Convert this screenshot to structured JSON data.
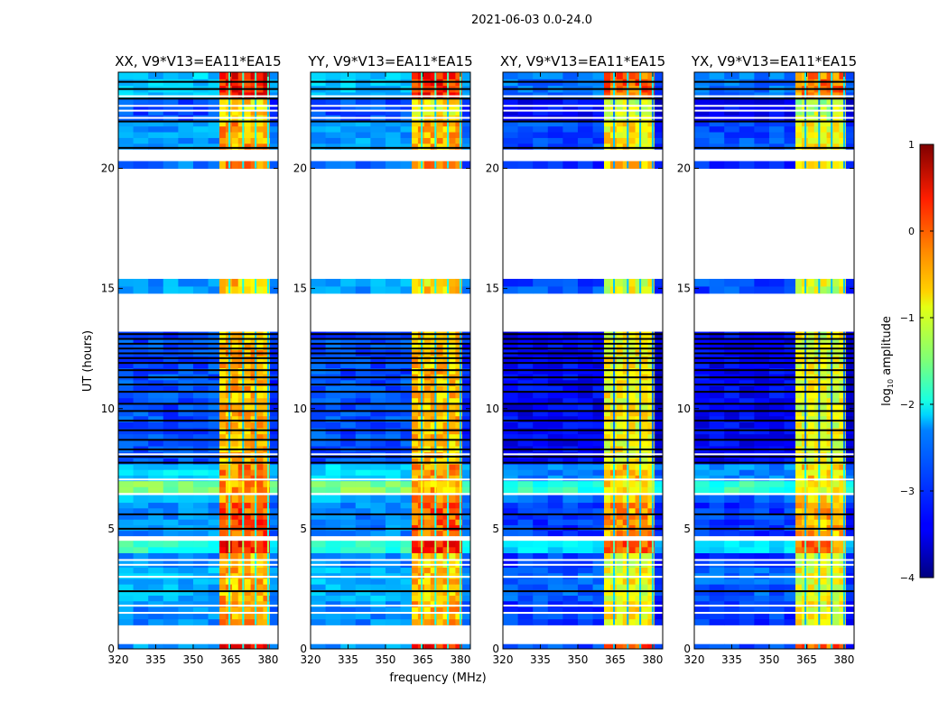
{
  "chart_data": {
    "type": "heatmap",
    "title": "2021-06-03 0.0-24.0",
    "xlabel": "frequency (MHz)",
    "ylabel": "UT (hours)",
    "xlim": [
      320,
      384
    ],
    "ylim": [
      0,
      24
    ],
    "xticks": [
      320,
      335,
      350,
      365,
      380
    ],
    "yticks": [
      0,
      5,
      10,
      15,
      20
    ],
    "panels": [
      {
        "title": "XX, V9*V13=EA11*EA15",
        "bg_offset": 0.0,
        "hi_offset": 0.2
      },
      {
        "title": "YY, V9*V13=EA11*EA15",
        "bg_offset": 0.0,
        "hi_offset": 0.1
      },
      {
        "title": "XY, V9*V13=EA11*EA15",
        "bg_offset": -0.4,
        "hi_offset": -0.2
      },
      {
        "title": "YX, V9*V13=EA11*EA15",
        "bg_offset": -0.4,
        "hi_offset": -0.3
      }
    ],
    "bright_band_mhz": [
      360.5,
      380.5
    ],
    "bright_stripes_mhz": [
      364.5,
      370,
      375,
      380
    ],
    "bands": [
      {
        "t": [
          0.0,
          0.2
        ],
        "bg": -2.6,
        "hi": 0.2
      },
      {
        "t": [
          1.0,
          2.0
        ],
        "bg": -2.7,
        "hi": -0.6
      },
      {
        "t": [
          2.0,
          3.4
        ],
        "bg": -2.5,
        "hi": -0.7
      },
      {
        "t": [
          3.4,
          4.0
        ],
        "bg": -2.7,
        "hi": -0.8
      },
      {
        "t": [
          4.0,
          4.5
        ],
        "bg": -1.9,
        "hi": 0.1
      },
      {
        "t": [
          4.7,
          6.1
        ],
        "bg": -2.7,
        "hi": -0.2
      },
      {
        "t": [
          6.1,
          6.4
        ],
        "bg": -2.5,
        "hi": -0.5
      },
      {
        "t": [
          6.5,
          7.0
        ],
        "bg": -1.5,
        "hi": -0.6
      },
      {
        "t": [
          7.0,
          7.7
        ],
        "bg": -2.3,
        "hi": -0.4
      },
      {
        "t": [
          7.7,
          13.2
        ],
        "bg": -3.0,
        "hi": -0.7
      },
      {
        "t": [
          14.8,
          15.4
        ],
        "bg": -2.6,
        "hi": -0.8
      },
      {
        "t": [
          20.0,
          20.3
        ],
        "bg": -2.8,
        "hi": -0.5
      },
      {
        "t": [
          20.8,
          22.0
        ],
        "bg": -2.6,
        "hi": -0.6
      },
      {
        "t": [
          22.0,
          22.9
        ],
        "bg": -3.0,
        "hi": -0.9
      },
      {
        "t": [
          22.9,
          24.0
        ],
        "bg": -2.4,
        "hi": 0.1
      }
    ],
    "white_lines": [
      1.5,
      1.8,
      3.0,
      3.5,
      3.7,
      4.55,
      4.65,
      6.45,
      7.05,
      8.1,
      22.1,
      22.4,
      22.6,
      23.0
    ],
    "black_lines": [
      2.4,
      5.0,
      5.6,
      7.75,
      8.0,
      8.3,
      8.7,
      9.1,
      9.5,
      9.9,
      10.2,
      10.7,
      11.0,
      11.3,
      11.6,
      11.9,
      12.1,
      12.3,
      12.5,
      12.7,
      12.9,
      13.1,
      20.85,
      21.95,
      22.9,
      23.3,
      23.6
    ],
    "colorbar": {
      "label_main": "log",
      "label_sub": "10",
      "label_rest": " amplitude",
      "ticks": [
        "1",
        "0",
        "−1",
        "−2",
        "−3",
        "−4"
      ],
      "range": [
        -4,
        1
      ],
      "colormap": "jet"
    }
  }
}
